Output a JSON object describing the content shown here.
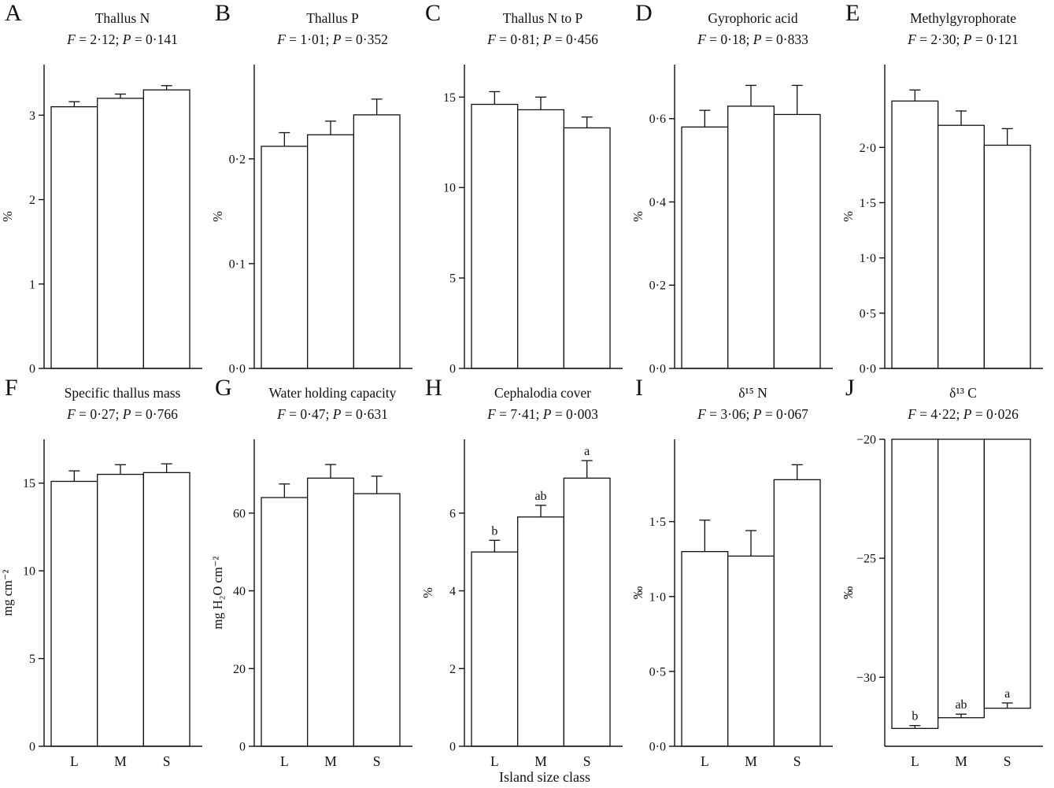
{
  "figure": {
    "x_axis_label": "Island size class",
    "bar_fill": "#ffffff",
    "line_color": "#111111"
  },
  "chart_data": [
    {
      "type": "bar",
      "panel": "A",
      "title": "Thallus N",
      "f_label": "F",
      "f_text": " = 2·12; ",
      "p_label": "P",
      "p_text": " = 0·141",
      "ylabel": "%",
      "ylim": [
        0,
        3.6
      ],
      "yticks": [
        {
          "v": 0,
          "label": "0"
        },
        {
          "v": 1,
          "label": "1"
        },
        {
          "v": 2,
          "label": "2"
        },
        {
          "v": 3,
          "label": "3"
        }
      ],
      "categories": [
        "L",
        "M",
        "S"
      ],
      "values": [
        3.1,
        3.2,
        3.3
      ],
      "errors": [
        0.06,
        0.05,
        0.05
      ],
      "sig_letters": [
        "",
        "",
        ""
      ],
      "show_x_labels": false,
      "invert": false
    },
    {
      "type": "bar",
      "panel": "B",
      "title": "Thallus P",
      "f_label": "F",
      "f_text": " = 1·01; ",
      "p_label": "P",
      "p_text": " = 0·352",
      "ylabel": "%",
      "ylim": [
        0,
        0.29
      ],
      "yticks": [
        {
          "v": 0,
          "label": "0·0"
        },
        {
          "v": 0.1,
          "label": "0·1"
        },
        {
          "v": 0.2,
          "label": "0·2"
        }
      ],
      "categories": [
        "L",
        "M",
        "S"
      ],
      "values": [
        0.212,
        0.223,
        0.242
      ],
      "errors": [
        0.013,
        0.013,
        0.015
      ],
      "sig_letters": [
        "",
        "",
        ""
      ],
      "show_x_labels": false,
      "invert": false
    },
    {
      "type": "bar",
      "panel": "C",
      "title": "Thallus N to P",
      "f_label": "F",
      "f_text": " = 0·81; ",
      "p_label": "P",
      "p_text": " = 0·456",
      "ylabel": "",
      "ylim": [
        0,
        16.8
      ],
      "yticks": [
        {
          "v": 0,
          "label": "0"
        },
        {
          "v": 5,
          "label": "5"
        },
        {
          "v": 10,
          "label": "10"
        },
        {
          "v": 15,
          "label": "15"
        }
      ],
      "categories": [
        "L",
        "M",
        "S"
      ],
      "values": [
        14.6,
        14.3,
        13.3
      ],
      "errors": [
        0.7,
        0.7,
        0.6
      ],
      "sig_letters": [
        "",
        "",
        ""
      ],
      "show_x_labels": false,
      "invert": false
    },
    {
      "type": "bar",
      "panel": "D",
      "title": "Gyrophoric acid",
      "f_label": "F",
      "f_text": " = 0·18; ",
      "p_label": "P",
      "p_text": " = 0·833",
      "ylabel": "%",
      "ylim": [
        0,
        0.73
      ],
      "yticks": [
        {
          "v": 0,
          "label": "0·0"
        },
        {
          "v": 0.2,
          "label": "0·2"
        },
        {
          "v": 0.4,
          "label": "0·4"
        },
        {
          "v": 0.6,
          "label": "0·6"
        }
      ],
      "categories": [
        "L",
        "M",
        "S"
      ],
      "values": [
        0.58,
        0.63,
        0.61
      ],
      "errors": [
        0.04,
        0.05,
        0.07
      ],
      "sig_letters": [
        "",
        "",
        ""
      ],
      "show_x_labels": false,
      "invert": false
    },
    {
      "type": "bar",
      "panel": "E",
      "title": "Methylgyrophorate",
      "f_label": "F",
      "f_text": " = 2·30; ",
      "p_label": "P",
      "p_text": " = 0·121",
      "ylabel": "%",
      "ylim": [
        0,
        2.75
      ],
      "yticks": [
        {
          "v": 0,
          "label": "0·0"
        },
        {
          "v": 0.5,
          "label": "0·5"
        },
        {
          "v": 1,
          "label": "1·0"
        },
        {
          "v": 1.5,
          "label": "1·5"
        },
        {
          "v": 2,
          "label": "2·0"
        }
      ],
      "categories": [
        "L",
        "M",
        "S"
      ],
      "values": [
        2.42,
        2.2,
        2.02
      ],
      "errors": [
        0.1,
        0.13,
        0.15
      ],
      "sig_letters": [
        "",
        "",
        ""
      ],
      "show_x_labels": false,
      "invert": false
    },
    {
      "type": "bar",
      "panel": "F",
      "title": "Specific thallus mass",
      "f_label": "F",
      "f_text": " = 0·27; ",
      "p_label": "P",
      "p_text": " = 0·766",
      "ylabel": "mg cm⁻²",
      "ylim": [
        0,
        17.5
      ],
      "yticks": [
        {
          "v": 0,
          "label": "0"
        },
        {
          "v": 5,
          "label": "5"
        },
        {
          "v": 10,
          "label": "10"
        },
        {
          "v": 15,
          "label": "15"
        }
      ],
      "categories": [
        "L",
        "M",
        "S"
      ],
      "values": [
        15.1,
        15.5,
        15.6
      ],
      "errors": [
        0.6,
        0.55,
        0.5
      ],
      "sig_letters": [
        "",
        "",
        ""
      ],
      "show_x_labels": true,
      "invert": false
    },
    {
      "type": "bar",
      "panel": "G",
      "title": "Water holding capacity",
      "f_label": "F",
      "f_text": " = 0·47; ",
      "p_label": "P",
      "p_text": " = 0·631",
      "ylabel": "mg H₂O cm⁻²",
      "ylim": [
        0,
        79
      ],
      "yticks": [
        {
          "v": 0,
          "label": "0"
        },
        {
          "v": 20,
          "label": "20"
        },
        {
          "v": 40,
          "label": "40"
        },
        {
          "v": 60,
          "label": "60"
        }
      ],
      "categories": [
        "L",
        "M",
        "S"
      ],
      "values": [
        64,
        69,
        65
      ],
      "errors": [
        3.5,
        3.5,
        4.5
      ],
      "sig_letters": [
        "",
        "",
        ""
      ],
      "show_x_labels": true,
      "invert": false
    },
    {
      "type": "bar",
      "panel": "H",
      "title": "Cephalodia cover",
      "f_label": "F",
      "f_text": " = 7·41; ",
      "p_label": "P",
      "p_text": " = 0·003",
      "ylabel": "%",
      "ylim": [
        0,
        7.9
      ],
      "yticks": [
        {
          "v": 0,
          "label": "0"
        },
        {
          "v": 2,
          "label": "2"
        },
        {
          "v": 4,
          "label": "4"
        },
        {
          "v": 6,
          "label": "6"
        }
      ],
      "categories": [
        "L",
        "M",
        "S"
      ],
      "values": [
        5.0,
        5.9,
        6.9
      ],
      "errors": [
        0.3,
        0.3,
        0.45
      ],
      "sig_letters": [
        "b",
        "ab",
        "a"
      ],
      "show_x_labels": true,
      "invert": false
    },
    {
      "type": "bar",
      "panel": "I",
      "title": "δ¹⁵ N",
      "f_label": "F",
      "f_text": " = 3·06; ",
      "p_label": "P",
      "p_text": " = 0·067",
      "ylabel": "‰",
      "ylim": [
        0,
        2.05
      ],
      "yticks": [
        {
          "v": 0,
          "label": "0·0"
        },
        {
          "v": 0.5,
          "label": "0·5"
        },
        {
          "v": 1,
          "label": "1·0"
        },
        {
          "v": 1.5,
          "label": "1·5"
        }
      ],
      "categories": [
        "L",
        "M",
        "S"
      ],
      "values": [
        1.3,
        1.27,
        1.78
      ],
      "errors": [
        0.21,
        0.17,
        0.1
      ],
      "sig_letters": [
        "",
        "",
        ""
      ],
      "show_x_labels": true,
      "invert": false
    },
    {
      "type": "bar",
      "panel": "J",
      "title": "δ¹³ C",
      "f_label": "F",
      "f_text": " = 4·22; ",
      "p_label": "P",
      "p_text": " = 0·026",
      "ylabel": "‰",
      "ylim": [
        -32.9,
        -20
      ],
      "yticks": [
        {
          "v": -20,
          "label": "−20"
        },
        {
          "v": -25,
          "label": "−25"
        },
        {
          "v": -30,
          "label": "−30"
        }
      ],
      "categories": [
        "L",
        "M",
        "S"
      ],
      "values": [
        -32.15,
        -31.7,
        -31.3
      ],
      "errors": [
        0.12,
        0.15,
        0.22
      ],
      "sig_letters": [
        "b",
        "ab",
        "a"
      ],
      "show_x_labels": true,
      "invert": true
    }
  ]
}
